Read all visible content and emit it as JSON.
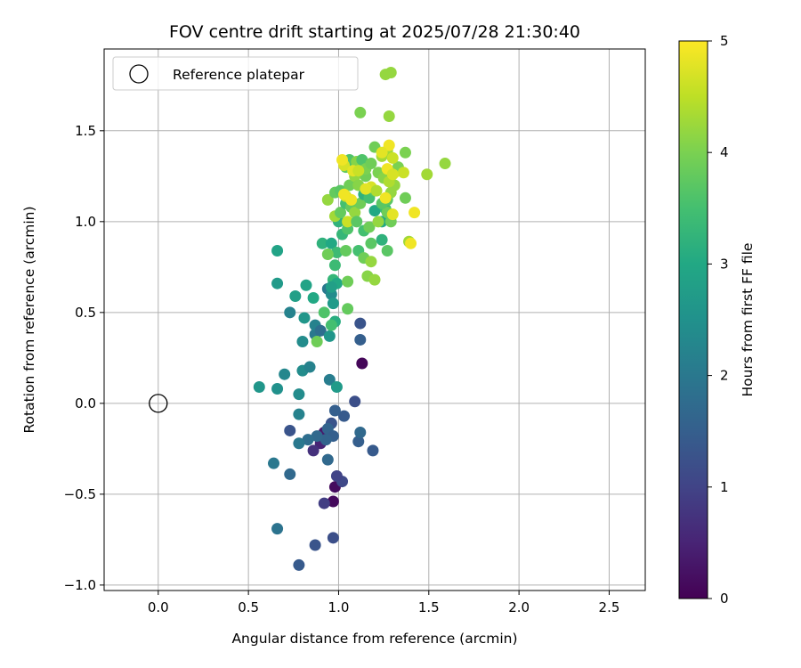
{
  "chart_data": {
    "type": "scatter",
    "title": "FOV centre drift starting at 2025/07/28 21:30:40",
    "xlabel": "Angular distance from reference (arcmin)",
    "ylabel": "Rotation from reference (arcmin)",
    "xlim": [
      -0.3,
      2.7
    ],
    "ylim": [
      -1.03,
      1.95
    ],
    "xticks": [
      "0.0",
      "0.5",
      "1.0",
      "1.5",
      "2.0",
      "2.5"
    ],
    "yticks": [
      "−1.0",
      "−0.5",
      "0.0",
      "0.5",
      "1.0",
      "1.5"
    ],
    "grid": true,
    "legend": {
      "placement": "upper-left",
      "entries": [
        "Reference platepar"
      ]
    },
    "reference": {
      "x": 0.0,
      "y": 0.0
    },
    "colorbar": {
      "label": "Hours from first FF file",
      "range": [
        0,
        5
      ],
      "ticks": [
        "0",
        "1",
        "2",
        "3",
        "4",
        "5"
      ],
      "colormap": "viridis"
    },
    "points": [
      [
        1.13,
        0.22,
        0.08
      ],
      [
        0.97,
        -0.54,
        0.12
      ],
      [
        0.98,
        -0.46,
        0.15
      ],
      [
        0.92,
        -0.16,
        0.35
      ],
      [
        0.9,
        -0.22,
        0.5
      ],
      [
        0.86,
        -0.26,
        0.7
      ],
      [
        0.92,
        -0.55,
        0.9
      ],
      [
        0.97,
        -0.74,
        1.2
      ],
      [
        0.87,
        -0.78,
        1.3
      ],
      [
        0.78,
        -0.89,
        1.4
      ],
      [
        1.02,
        -0.43,
        1.1
      ],
      [
        0.99,
        -0.4,
        1.0
      ],
      [
        1.12,
        0.44,
        1.3
      ],
      [
        1.12,
        0.35,
        1.5
      ],
      [
        1.09,
        0.01,
        1.2
      ],
      [
        1.03,
        -0.07,
        1.4
      ],
      [
        0.98,
        -0.04,
        1.5
      ],
      [
        0.96,
        -0.11,
        1.3
      ],
      [
        0.94,
        -0.14,
        1.6
      ],
      [
        0.97,
        -0.18,
        1.5
      ],
      [
        1.11,
        -0.21,
        1.5
      ],
      [
        1.12,
        -0.16,
        1.7
      ],
      [
        1.19,
        -0.26,
        1.4
      ],
      [
        0.93,
        -0.2,
        1.6
      ],
      [
        0.88,
        -0.18,
        1.7
      ],
      [
        0.83,
        -0.2,
        1.8
      ],
      [
        0.78,
        -0.22,
        2.0
      ],
      [
        0.73,
        -0.15,
        1.3
      ],
      [
        0.94,
        -0.31,
        1.7
      ],
      [
        0.73,
        -0.39,
        1.7
      ],
      [
        0.64,
        -0.33,
        2.0
      ],
      [
        0.66,
        -0.69,
        1.9
      ],
      [
        0.78,
        -0.06,
        2.2
      ],
      [
        0.78,
        0.05,
        2.4
      ],
      [
        0.66,
        0.08,
        2.5
      ],
      [
        0.56,
        0.09,
        2.6
      ],
      [
        0.7,
        0.16,
        2.3
      ],
      [
        0.8,
        0.18,
        2.4
      ],
      [
        0.84,
        0.2,
        2.2
      ],
      [
        0.95,
        0.13,
        2.1
      ],
      [
        0.99,
        0.09,
        2.7
      ],
      [
        0.8,
        0.34,
        2.4
      ],
      [
        0.87,
        0.38,
        2.0
      ],
      [
        0.87,
        0.43,
        2.2
      ],
      [
        0.9,
        0.4,
        1.8
      ],
      [
        0.95,
        0.37,
        2.6
      ],
      [
        0.98,
        0.45,
        3.1
      ],
      [
        0.81,
        0.47,
        2.6
      ],
      [
        0.73,
        0.5,
        2.2
      ],
      [
        0.76,
        0.59,
        2.8
      ],
      [
        0.86,
        0.58,
        3.0
      ],
      [
        0.94,
        0.63,
        2.0
      ],
      [
        0.96,
        0.6,
        2.4
      ],
      [
        0.97,
        0.55,
        2.7
      ],
      [
        0.66,
        0.66,
        2.7
      ],
      [
        0.66,
        0.84,
        2.9
      ],
      [
        0.82,
        0.65,
        2.9
      ],
      [
        0.92,
        0.5,
        3.6
      ],
      [
        0.96,
        0.43,
        3.5
      ],
      [
        0.97,
        0.68,
        3.3
      ],
      [
        0.99,
        0.66,
        3.0
      ],
      [
        0.96,
        0.64,
        2.8
      ],
      [
        0.98,
        0.76,
        3.4
      ],
      [
        1.05,
        0.52,
        3.8
      ],
      [
        1.05,
        0.67,
        3.9
      ],
      [
        0.88,
        0.34,
        3.9
      ],
      [
        0.91,
        0.88,
        3.2
      ],
      [
        0.96,
        0.88,
        3.0
      ],
      [
        0.99,
        0.83,
        3.4
      ],
      [
        0.94,
        0.82,
        3.9
      ],
      [
        1.04,
        0.84,
        3.8
      ],
      [
        1.11,
        0.84,
        3.5
      ],
      [
        1.14,
        0.8,
        3.9
      ],
      [
        1.18,
        0.78,
        4.2
      ],
      [
        1.16,
        0.7,
        4.1
      ],
      [
        1.2,
        0.68,
        4.2
      ],
      [
        1.18,
        0.88,
        3.7
      ],
      [
        1.24,
        0.9,
        3.2
      ],
      [
        1.27,
        0.84,
        3.7
      ],
      [
        1.02,
        0.93,
        3.3
      ],
      [
        1.05,
        0.96,
        3.6
      ],
      [
        1.14,
        0.95,
        3.5
      ],
      [
        1.17,
        0.97,
        3.9
      ],
      [
        1.2,
        1.06,
        3.0
      ],
      [
        1.24,
        1.0,
        3.0
      ],
      [
        1.26,
        1.07,
        3.4
      ],
      [
        1.27,
        1.05,
        3.9
      ],
      [
        1.29,
        1.0,
        3.9
      ],
      [
        1.0,
        1.0,
        3.2
      ],
      [
        0.98,
        1.03,
        4.3
      ],
      [
        1.01,
        1.05,
        3.8
      ],
      [
        1.04,
        1.1,
        3.5
      ],
      [
        1.07,
        1.08,
        3.8
      ],
      [
        1.09,
        1.05,
        4.2
      ],
      [
        1.12,
        1.1,
        3.9
      ],
      [
        1.14,
        1.15,
        3.2
      ],
      [
        1.17,
        1.13,
        3.5
      ],
      [
        1.2,
        1.17,
        3.7
      ],
      [
        1.24,
        1.1,
        3.7
      ],
      [
        1.27,
        1.12,
        3.7
      ],
      [
        1.29,
        1.16,
        4.2
      ],
      [
        1.31,
        1.2,
        4.2
      ],
      [
        0.94,
        1.12,
        4.2
      ],
      [
        0.98,
        1.16,
        3.8
      ],
      [
        1.01,
        1.17,
        3.7
      ],
      [
        1.04,
        1.14,
        4.6
      ],
      [
        1.06,
        1.2,
        3.9
      ],
      [
        1.09,
        1.25,
        4.2
      ],
      [
        1.11,
        1.2,
        4.1
      ],
      [
        1.15,
        1.25,
        3.9
      ],
      [
        1.18,
        1.19,
        4.7
      ],
      [
        1.22,
        1.27,
        4.0
      ],
      [
        1.25,
        1.24,
        4.1
      ],
      [
        1.28,
        1.22,
        4.4
      ],
      [
        1.31,
        1.27,
        4.8
      ],
      [
        1.33,
        1.3,
        4.0
      ],
      [
        1.36,
        1.27,
        4.6
      ],
      [
        1.37,
        1.13,
        3.9
      ],
      [
        1.39,
        0.89,
        4.3
      ],
      [
        1.4,
        0.88,
        4.9
      ],
      [
        1.42,
        1.05,
        4.9
      ],
      [
        1.3,
        1.04,
        4.8
      ],
      [
        1.26,
        1.13,
        4.9
      ],
      [
        1.05,
        1.0,
        4.6
      ],
      [
        1.07,
        1.12,
        4.9
      ],
      [
        1.03,
        1.15,
        4.9
      ],
      [
        1.04,
        1.3,
        3.8
      ],
      [
        1.06,
        1.34,
        3.6
      ],
      [
        1.1,
        1.33,
        4.1
      ],
      [
        1.13,
        1.34,
        3.6
      ],
      [
        1.15,
        1.29,
        4.0
      ],
      [
        1.18,
        1.32,
        3.9
      ],
      [
        1.2,
        1.41,
        3.9
      ],
      [
        1.24,
        1.36,
        4.3
      ],
      [
        1.27,
        1.39,
        4.3
      ],
      [
        1.28,
        1.42,
        4.9
      ],
      [
        1.3,
        1.35,
        4.6
      ],
      [
        1.27,
        1.29,
        4.9
      ],
      [
        1.24,
        1.38,
        4.8
      ],
      [
        1.03,
        1.31,
        4.7
      ],
      [
        1.02,
        1.34,
        4.9
      ],
      [
        1.08,
        1.28,
        4.8
      ],
      [
        1.11,
        1.28,
        4.6
      ],
      [
        1.37,
        1.38,
        4.0
      ],
      [
        1.49,
        1.26,
        4.3
      ],
      [
        1.59,
        1.32,
        4.2
      ],
      [
        1.3,
        1.26,
        4.7
      ],
      [
        1.12,
        1.6,
        4.0
      ],
      [
        1.28,
        1.58,
        4.2
      ],
      [
        1.26,
        1.81,
        4.2
      ],
      [
        1.29,
        1.82,
        4.2
      ],
      [
        1.15,
        1.18,
        4.8
      ],
      [
        1.21,
        1.17,
        4.4
      ],
      [
        1.1,
        1.0,
        3.7
      ],
      [
        1.22,
        1.0,
        4.2
      ]
    ]
  }
}
